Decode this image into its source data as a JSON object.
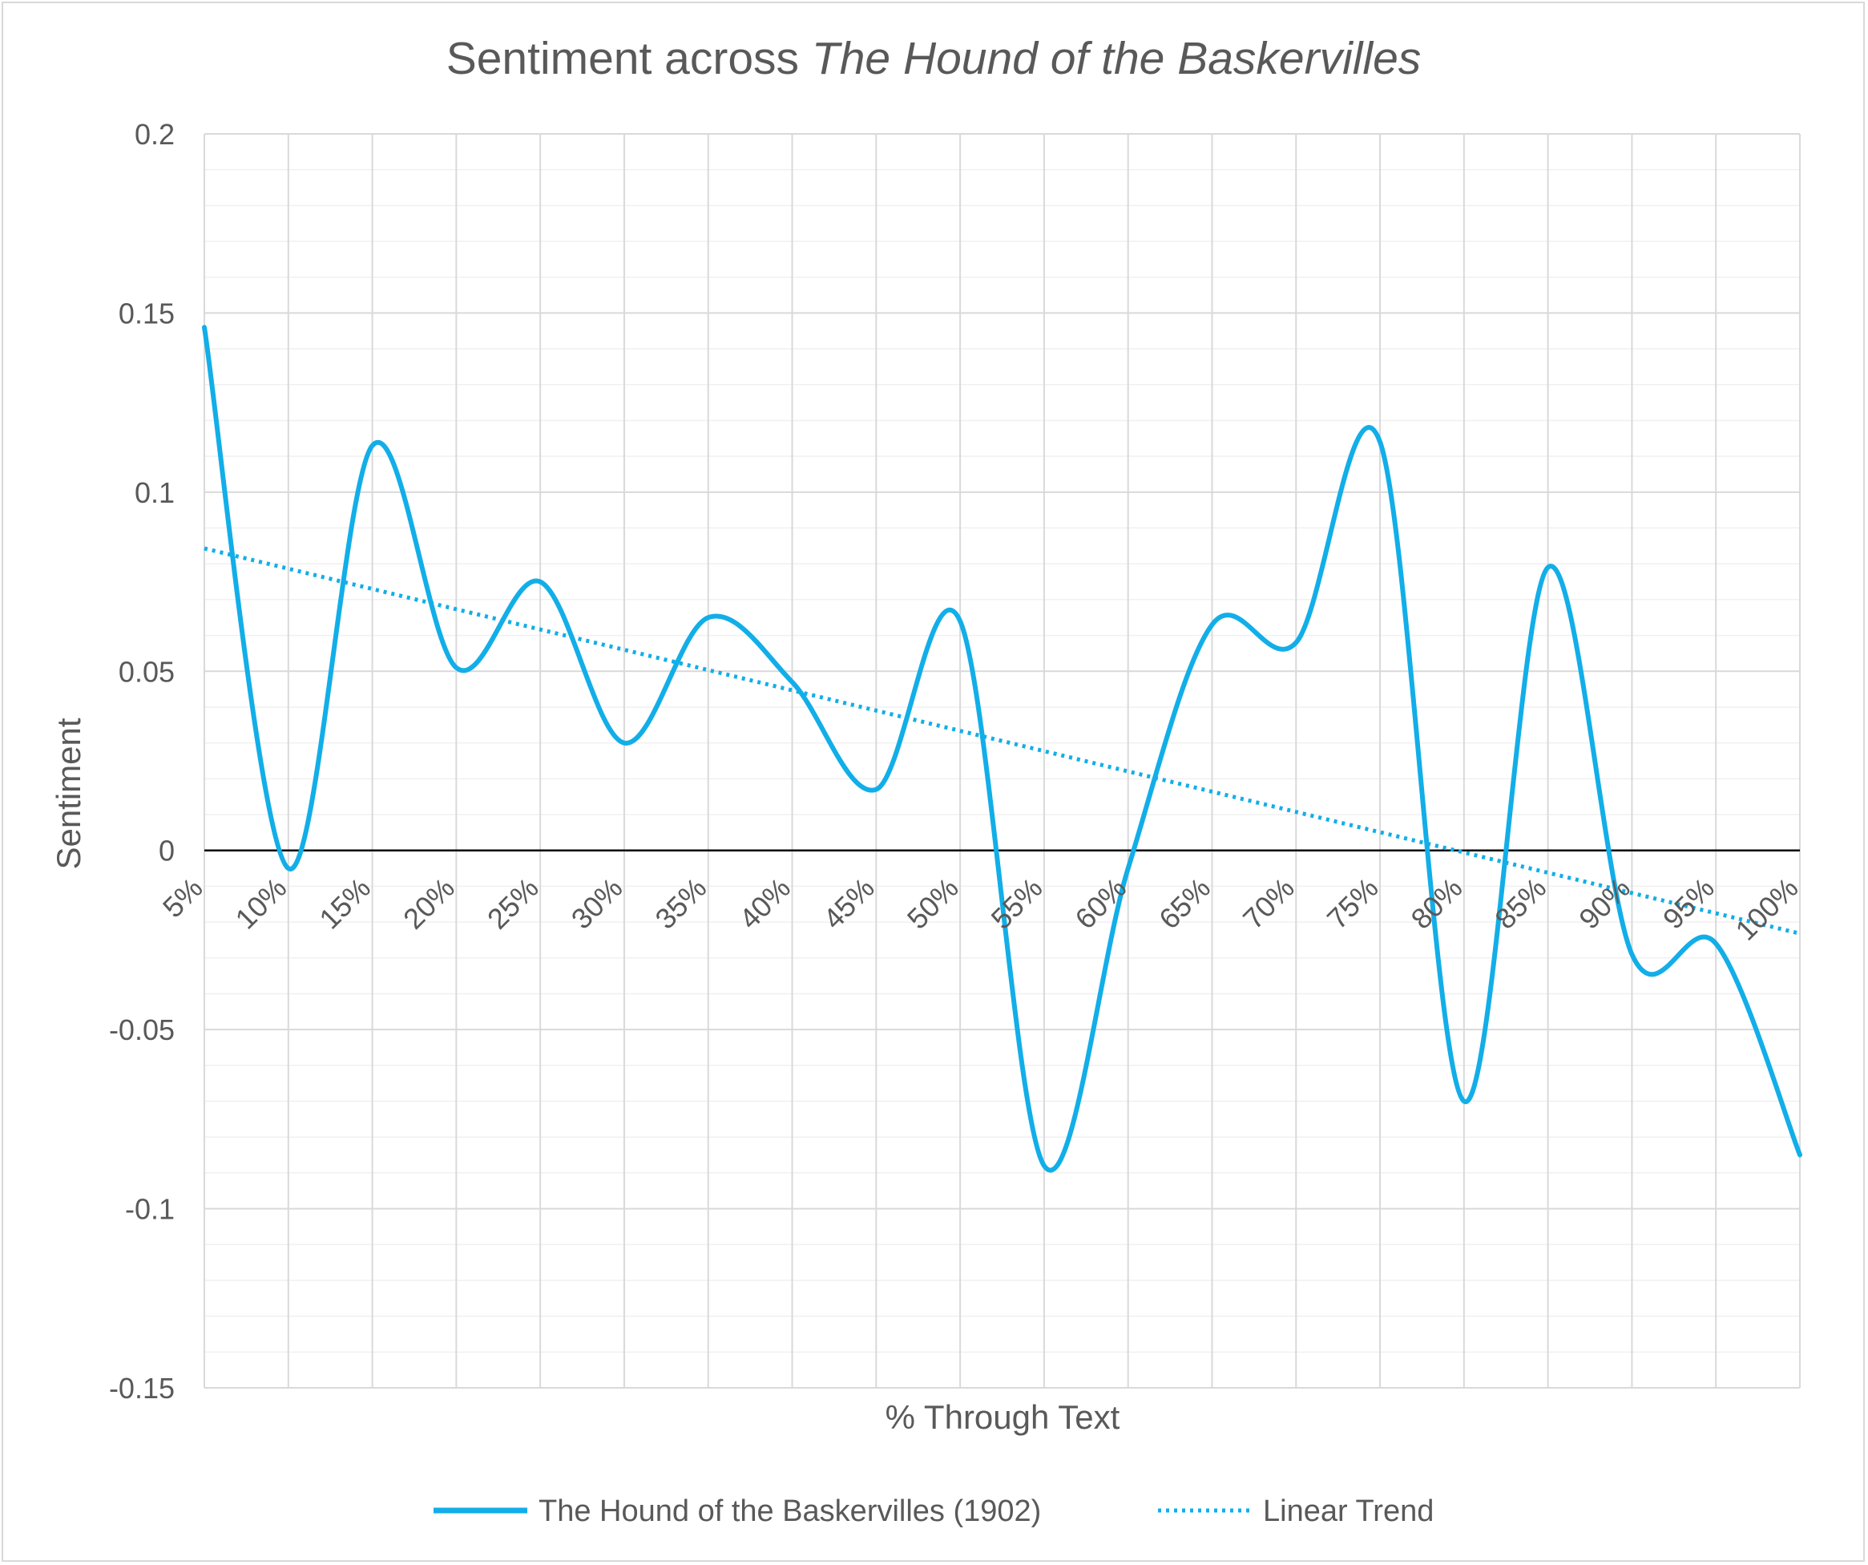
{
  "chart_data": {
    "type": "line",
    "title_plain": "Sentiment across ",
    "title_italic": "The Hound of the Baskervilles",
    "xlabel": "% Through Text",
    "ylabel": "Sentiment",
    "ylim": [
      -0.15,
      0.2
    ],
    "y_major_step": 0.05,
    "y_minor_step": 0.01,
    "y_tick_labels": [
      "0.2",
      "0.15",
      "0.1",
      "0.05",
      "0",
      "-0.05",
      "-0.1",
      "-0.15"
    ],
    "categories": [
      "5%",
      "10%",
      "15%",
      "20%",
      "25%",
      "30%",
      "35%",
      "40%",
      "45%",
      "50%",
      "55%",
      "60%",
      "65%",
      "70%",
      "75%",
      "80%",
      "85%",
      "90%",
      "95%",
      "100%"
    ],
    "series": [
      {
        "name": "The Hound of the Baskervilles (1902)",
        "style": "solid",
        "values": [
          0.146,
          -0.005,
          0.113,
          0.051,
          0.075,
          0.03,
          0.065,
          0.047,
          0.017,
          0.064,
          -0.088,
          -0.005,
          0.063,
          0.058,
          0.114,
          -0.07,
          0.079,
          -0.029,
          -0.026,
          -0.085
        ]
      },
      {
        "name": "Linear Trend",
        "style": "dotted",
        "start": 0.0843,
        "end": -0.0232
      }
    ],
    "colors": {
      "series": "#12aee8",
      "zero_line": "#000000",
      "major_grid": "#d9d9d9",
      "minor_grid": "#f0f0f0",
      "text": "#595959"
    },
    "grid": true,
    "legend_position": "bottom"
  }
}
